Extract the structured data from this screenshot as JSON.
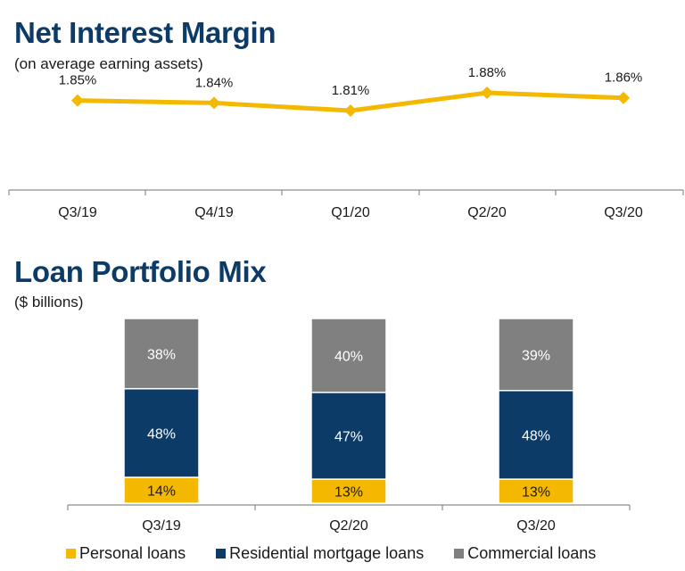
{
  "nim": {
    "title": "Net Interest Margin",
    "subtitle": "(on average earning assets)"
  },
  "mix": {
    "title": "Loan Portfolio Mix",
    "subtitle": "($ billions)"
  },
  "chart_data": [
    {
      "type": "line",
      "title": "Net Interest Margin",
      "subtitle": "(on average earning assets)",
      "categories": [
        "Q3/19",
        "Q4/19",
        "Q1/20",
        "Q2/20",
        "Q3/20"
      ],
      "series": [
        {
          "values": [
            1.85,
            1.84,
            1.81,
            1.88,
            1.86
          ],
          "labels": [
            "1.85%",
            "1.84%",
            "1.81%",
            "1.88%",
            "1.86%"
          ],
          "color": "#f5b800"
        }
      ],
      "grid": false
    },
    {
      "type": "bar",
      "stacked": true,
      "title": "Loan Portfolio Mix",
      "subtitle": "($ billions)",
      "categories": [
        "Q3/19",
        "Q2/20",
        "Q3/20"
      ],
      "series": [
        {
          "name": "Personal loans",
          "values": [
            14,
            13,
            13
          ],
          "labels": [
            "14%",
            "13%",
            "13%"
          ],
          "color": "#f5b800"
        },
        {
          "name": "Residential mortgage loans",
          "values": [
            48,
            47,
            48
          ],
          "labels": [
            "48%",
            "47%",
            "48%"
          ],
          "color": "#0b3b66"
        },
        {
          "name": "Commercial loans",
          "values": [
            38,
            40,
            39
          ],
          "labels": [
            "38%",
            "40%",
            "39%"
          ],
          "color": "#808080"
        }
      ],
      "legend": "bottom",
      "grid": false
    }
  ]
}
